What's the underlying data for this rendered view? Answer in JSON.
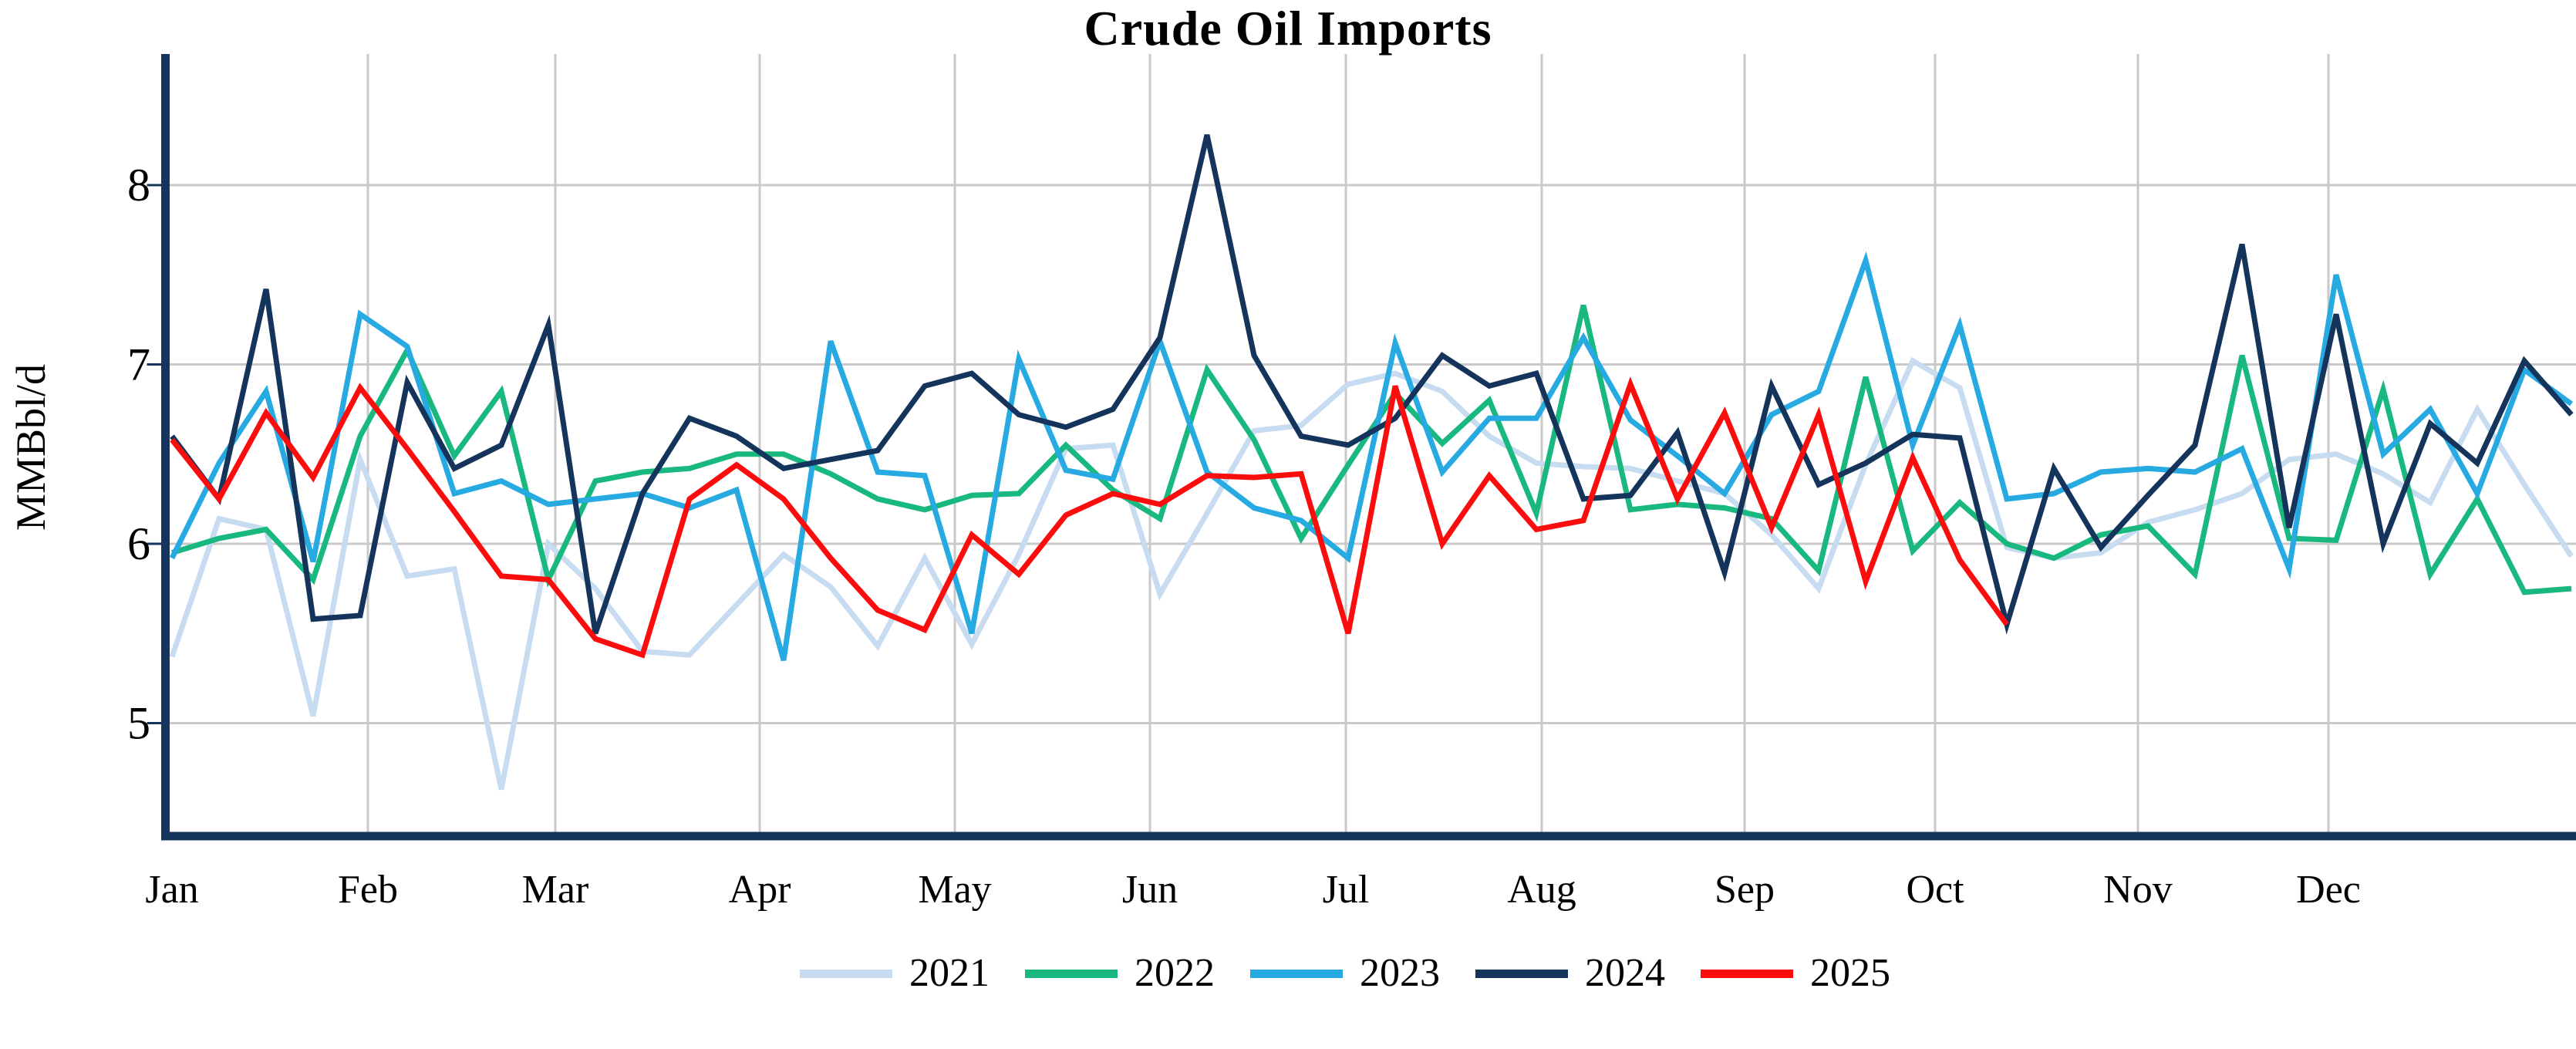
{
  "title": "Crude Oil Imports",
  "colors": {
    "axis": "#15355e",
    "gridline": "#c9c9c9",
    "background": "#ffffff",
    "text": "#000000"
  },
  "chart_data": {
    "type": "line",
    "title": "Crude Oil Imports",
    "xlabel": "",
    "ylabel": "MMBbl/d",
    "x_frequency": "weekly",
    "x_tick_labels": [
      "Jan",
      "Feb",
      "Mar",
      "Apr",
      "May",
      "Jun",
      "Jul",
      "Aug",
      "Sep",
      "Oct",
      "Nov",
      "Dec"
    ],
    "yticks": [
      5,
      6,
      7,
      8
    ],
    "ylim": [
      4.4,
      8.7
    ],
    "grid": true,
    "legend_position": "bottom",
    "series": [
      {
        "name": "2021",
        "color": "#c7dbf1",
        "values": [
          5.37,
          6.14,
          6.08,
          5.04,
          6.47,
          5.82,
          5.86,
          4.63,
          6.0,
          5.75,
          5.4,
          5.38,
          5.66,
          5.94,
          5.76,
          5.43,
          5.92,
          5.44,
          5.94,
          6.53,
          6.55,
          5.72,
          6.17,
          6.63,
          6.66,
          6.89,
          6.95,
          6.85,
          6.6,
          6.45,
          6.43,
          6.42,
          6.35,
          6.28,
          6.05,
          5.75,
          6.44,
          7.02,
          6.87,
          5.98,
          5.92,
          5.95,
          6.12,
          6.19,
          6.28,
          6.47,
          6.5,
          6.39,
          6.23,
          6.75,
          6.33,
          5.93
        ]
      },
      {
        "name": "2022",
        "color": "#18b87e",
        "values": [
          5.95,
          6.03,
          6.08,
          5.8,
          6.6,
          7.08,
          6.49,
          6.85,
          5.8,
          6.35,
          6.4,
          6.42,
          6.5,
          6.5,
          6.39,
          6.25,
          6.19,
          6.27,
          6.28,
          6.55,
          6.3,
          6.14,
          6.97,
          6.58,
          6.03,
          6.44,
          6.84,
          6.56,
          6.8,
          6.17,
          7.33,
          6.19,
          6.22,
          6.2,
          6.14,
          5.85,
          6.93,
          5.96,
          6.23,
          6.0,
          5.92,
          6.05,
          6.1,
          5.83,
          7.05,
          6.03,
          6.02,
          6.86,
          5.83,
          6.25,
          5.73,
          5.75
        ]
      },
      {
        "name": "2023",
        "color": "#27a9e2",
        "values": [
          5.92,
          6.45,
          6.85,
          5.9,
          7.28,
          7.1,
          6.28,
          6.35,
          6.22,
          6.25,
          6.28,
          6.2,
          6.3,
          5.35,
          7.13,
          6.4,
          6.38,
          5.5,
          7.03,
          6.41,
          6.36,
          7.13,
          6.4,
          6.2,
          6.13,
          5.92,
          7.12,
          6.4,
          6.7,
          6.7,
          7.15,
          6.69,
          6.49,
          6.28,
          6.72,
          6.85,
          7.58,
          6.55,
          7.22,
          6.25,
          6.28,
          6.4,
          6.42,
          6.4,
          6.53,
          5.86,
          7.5,
          6.5,
          6.75,
          6.28,
          6.97,
          6.78
        ]
      },
      {
        "name": "2024",
        "color": "#14345c",
        "values": [
          6.6,
          6.25,
          7.42,
          5.58,
          5.6,
          6.9,
          6.42,
          6.55,
          7.22,
          5.5,
          6.28,
          6.7,
          6.6,
          6.42,
          6.47,
          6.52,
          6.88,
          6.95,
          6.72,
          6.65,
          6.75,
          7.15,
          8.28,
          7.05,
          6.6,
          6.55,
          6.7,
          7.05,
          6.88,
          6.95,
          6.25,
          6.27,
          6.62,
          5.84,
          6.88,
          6.33,
          6.45,
          6.61,
          6.59,
          5.55,
          6.42,
          5.98,
          6.27,
          6.55,
          7.67,
          6.09,
          7.28,
          6.0,
          6.67,
          6.45,
          7.02,
          6.72
        ]
      },
      {
        "name": "2025",
        "color": "#fb0d0d",
        "values": [
          6.58,
          6.25,
          6.73,
          6.37,
          6.87,
          6.53,
          6.18,
          5.82,
          5.8,
          5.47,
          5.38,
          6.25,
          6.44,
          6.25,
          5.92,
          5.63,
          5.52,
          6.05,
          5.83,
          6.16,
          6.28,
          6.22,
          6.38,
          6.37,
          6.39,
          5.5,
          6.88,
          6.0,
          6.38,
          6.08,
          6.13,
          6.89,
          6.25,
          6.73,
          6.09,
          6.72,
          5.79,
          6.48,
          5.91,
          5.55
        ]
      }
    ]
  }
}
